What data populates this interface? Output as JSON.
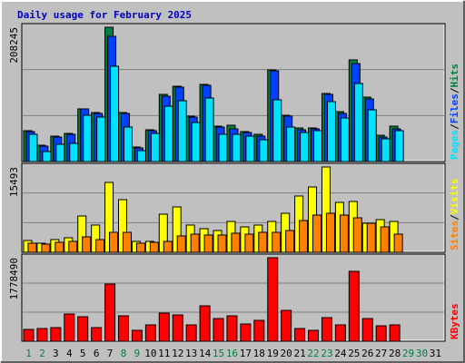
{
  "chart_data": [
    {
      "type": "bar",
      "title": "Daily usage for February 2025",
      "title_color": "#0000c0",
      "series": [
        {
          "name": "Hits",
          "color": "#008040",
          "values": [
            46748,
            24082,
            38248,
            42498,
            80746,
            75080,
            208245,
            75080,
            21249,
            48164,
            103412,
            116161,
            69413,
            118994,
            53831,
            55247,
            45331,
            41081,
            141660,
            70830,
            50998,
            50998,
            104828,
            76496,
            157243,
            99162,
            39665,
            53831,
            null,
            null,
            null
          ]
        },
        {
          "name": "Files",
          "color": "#0040ff",
          "values": [
            45331,
            22666,
            36832,
            41081,
            80746,
            73663,
            194074,
            73663,
            19832,
            46748,
            100578,
            114745,
            67997,
            117578,
            52414,
            49581,
            43915,
            38248,
            140243,
            69413,
            48164,
            49581,
            103412,
            73663,
            151576,
            96329,
            36832,
            49581,
            null,
            null,
            null
          ]
        },
        {
          "name": "Pages",
          "color": "#00e0ff",
          "values": [
            41081,
            14166,
            25499,
            26915,
            70830,
            67997,
            147326,
            52414,
            15583,
            42498,
            84996,
            93496,
            59497,
            97745,
            41081,
            41081,
            38248,
            32582,
            94912,
            52414,
            43915,
            46748,
            92079,
            66580,
            120411,
            79330,
            33998,
            46748,
            null,
            null,
            null
          ]
        }
      ],
      "legend_separator": "/",
      "ylim": [
        0,
        208245
      ],
      "yticks": [
        208245
      ],
      "grid": true
    },
    {
      "type": "bar",
      "series": [
        {
          "name": "Visits",
          "color": "#ffff00",
          "values": [
            1999,
            1499,
            2166,
            2499,
            6497,
            4831,
            12661,
            9496,
            1833,
            1833,
            6831,
            8163,
            4831,
            4165,
            3832,
            5498,
            4498,
            4831,
            5498,
            6997,
            10163,
            11829,
            15493,
            8996,
            9163,
            5165,
            5831,
            5498,
            null,
            null,
            null
          ]
        },
        {
          "name": "Sites",
          "color": "#ff8000",
          "values": [
            1499,
            1333,
            1666,
            1833,
            2666,
            2166,
            3499,
            3499,
            1499,
            1666,
            1833,
            2832,
            3165,
            2999,
            2999,
            3332,
            3165,
            3499,
            3499,
            3832,
            5664,
            6664,
            6997,
            6664,
            6164,
            5165,
            4498,
            3165,
            null,
            null,
            null
          ]
        }
      ],
      "legend_separator": "/",
      "ylim": [
        0,
        15493
      ],
      "yticks": [
        15493
      ],
      "grid": true
    },
    {
      "type": "bar",
      "categories": [
        "1",
        "2",
        "3",
        "4",
        "5",
        "6",
        "7",
        "8",
        "9",
        "10",
        "11",
        "12",
        "13",
        "14",
        "15",
        "16",
        "17",
        "18",
        "19",
        "20",
        "21",
        "22",
        "23",
        "24",
        "25",
        "26",
        "27",
        "28",
        "29",
        "30",
        "31"
      ],
      "category_colors": [
        "#008040",
        "#008040",
        "#000000",
        "#000000",
        "#000000",
        "#000000",
        "#000000",
        "#008040",
        "#008040",
        "#000000",
        "#000000",
        "#000000",
        "#000000",
        "#000000",
        "#008040",
        "#008040",
        "#000000",
        "#000000",
        "#000000",
        "#000000",
        "#000000",
        "#008040",
        "#008040",
        "#000000",
        "#000000",
        "#000000",
        "#000000",
        "#000000",
        "#008040",
        "#008040",
        "#000000"
      ],
      "series": [
        {
          "name": "KBytes",
          "color": "#ff0000",
          "values": [
            234528,
            254072,
            273616,
            566776,
            508144,
            273616,
            1211728,
            527688,
            214984,
            332248,
            586320,
            547232,
            332248,
            742672,
            469056,
            527688,
            351792,
            429968,
            1778490,
            644952,
            254072,
            214984,
            488600,
            332248,
            1485344,
            469056,
            312704,
            332248,
            null,
            null,
            null
          ]
        }
      ],
      "ylim": [
        0,
        1778490
      ],
      "yticks": [
        1778490
      ],
      "grid": true
    }
  ]
}
